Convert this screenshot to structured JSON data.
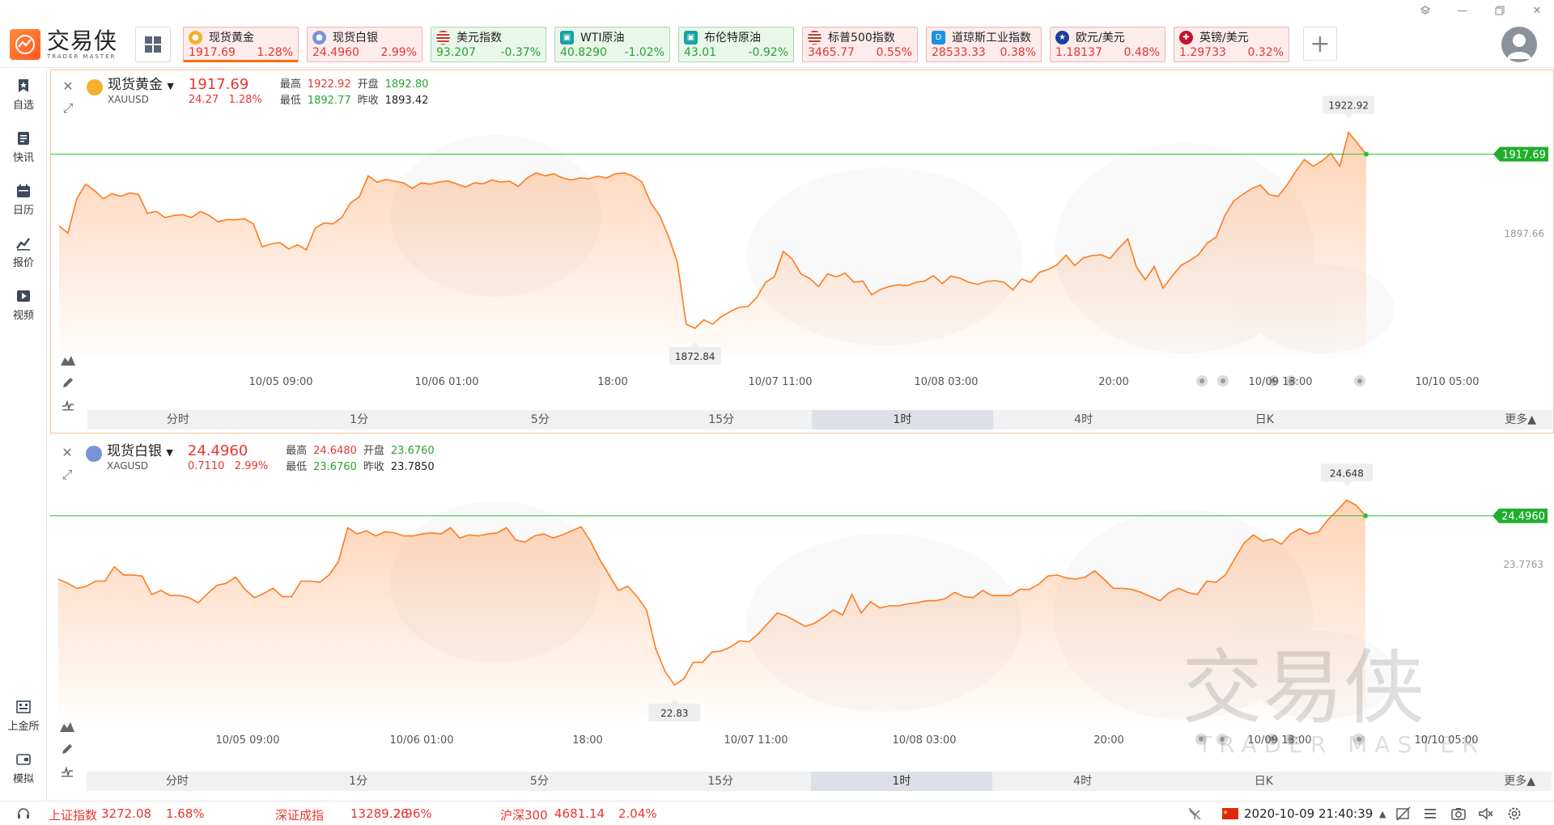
{
  "app": {
    "logo_cn": "交易侠",
    "logo_en": "TRADER MASTER"
  },
  "tickers": [
    {
      "name": "现货黄金",
      "price": "1917.69",
      "change": "1.28%",
      "dir": "up",
      "icon": "gold-coin-icon",
      "active": true
    },
    {
      "name": "现货白银",
      "price": "24.4960",
      "change": "2.99%",
      "dir": "up",
      "icon": "silver-coin-icon"
    },
    {
      "name": "美元指数",
      "price": "93.207",
      "change": "-0.37%",
      "dir": "down",
      "icon": "us-flag-icon"
    },
    {
      "name": "WTI原油",
      "price": "40.8290",
      "change": "-1.02%",
      "dir": "down",
      "icon": "oil-icon"
    },
    {
      "name": "布伦特原油",
      "price": "43.01",
      "change": "-0.92%",
      "dir": "down",
      "icon": "oil-icon"
    },
    {
      "name": "标普500指数",
      "price": "3465.77",
      "change": "0.55%",
      "dir": "up",
      "icon": "us-flag-icon"
    },
    {
      "name": "道琼斯工业指数",
      "price": "28533.33",
      "change": "0.38%",
      "dir": "up",
      "icon": "dow-jones-icon"
    },
    {
      "name": "欧元/美元",
      "price": "1.18137",
      "change": "0.48%",
      "dir": "up",
      "icon": "eu-flag-icon"
    },
    {
      "name": "英镑/美元",
      "price": "1.29733",
      "change": "0.32%",
      "dir": "up",
      "icon": "uk-flag-icon"
    }
  ],
  "sidebar": {
    "top": [
      {
        "label": "自选",
        "icon": "bookmark-star-icon"
      },
      {
        "label": "快讯",
        "icon": "news-icon"
      },
      {
        "label": "日历",
        "icon": "calendar-icon"
      },
      {
        "label": "报价",
        "icon": "quote-chart-icon"
      },
      {
        "label": "视频",
        "icon": "video-play-icon"
      }
    ],
    "bottom": [
      {
        "label": "上金所",
        "icon": "exchange-icon"
      },
      {
        "label": "模拟",
        "icon": "simulate-icon"
      }
    ]
  },
  "timeframes": [
    "分时",
    "1分",
    "5分",
    "15分",
    "1时",
    "4时",
    "日K",
    "更多▲"
  ],
  "selected_timeframe": "1时",
  "panels": [
    {
      "name": "现货黄金",
      "code": "XAUUSD",
      "last": "1917.69",
      "chg_abs": "24.27",
      "chg_pct": "1.28%",
      "high_label": "最高",
      "high": "1922.92",
      "open_label": "开盘",
      "open": "1892.80",
      "low_label": "最低",
      "low": "1892.77",
      "prev_label": "昨收",
      "prev": "1893.42",
      "mid_axis_label": "1897.66",
      "top_axis_label": "1917.69",
      "max_label": "1922.92",
      "min_label": "1872.84",
      "x_labels": [
        "10/05 09:00",
        "10/06 01:00",
        "18:00",
        "10/07 11:00",
        "10/08 03:00",
        "20:00",
        "10/09 13:00",
        "10/10 05:00"
      ],
      "chart_data": {
        "type": "area",
        "y_range": [
          1869,
          1930
        ],
        "values": [
          1900.5,
          1898.8,
          1907,
          1910.5,
          1909,
          1907,
          1908.2,
          1907.6,
          1908.4,
          1908,
          1903.5,
          1904,
          1902.5,
          1903,
          1903.2,
          1902.5,
          1904,
          1903,
          1901.5,
          1902,
          1902,
          1902.2,
          1901,
          1895.5,
          1896.2,
          1896.5,
          1895,
          1896,
          1894.8,
          1900,
          1901.2,
          1901,
          1902.5,
          1906,
          1907.5,
          1912.5,
          1911,
          1911.6,
          1911.2,
          1910.8,
          1909.5,
          1910.8,
          1910.5,
          1911,
          1911.3,
          1910.6,
          1909.8,
          1910.8,
          1910.6,
          1911.5,
          1911,
          1911.2,
          1910,
          1912,
          1913.2,
          1912.5,
          1913,
          1912,
          1911.5,
          1912,
          1911.8,
          1912.4,
          1912,
          1913,
          1913.2,
          1912.4,
          1911,
          1906,
          1903,
          1898,
          1891.8,
          1877,
          1876,
          1878,
          1877,
          1878.8,
          1880,
          1881,
          1881.2,
          1883.4,
          1887,
          1888.4,
          1894.4,
          1892.6,
          1889,
          1887.9,
          1886,
          1889,
          1888.3,
          1889.2,
          1887,
          1887.3,
          1884,
          1885.3,
          1886,
          1886.4,
          1886.2,
          1887,
          1887.3,
          1888.6,
          1886.7,
          1888.5,
          1888,
          1887,
          1886.5,
          1887.2,
          1887.4,
          1887,
          1885.2,
          1887.8,
          1887,
          1889.4,
          1890.1,
          1891.2,
          1893.5,
          1891,
          1892.9,
          1893.4,
          1893.6,
          1892.7,
          1895.2,
          1897.4,
          1890.6,
          1887.6,
          1890.8,
          1885.6,
          1888.4,
          1891,
          1892.2,
          1893.6,
          1896.4,
          1897.8,
          1903,
          1906.5,
          1908,
          1909.4,
          1910.3,
          1908,
          1907.6,
          1910.2,
          1913.5,
          1916.4,
          1914.8,
          1916.1,
          1917.9,
          1914.8,
          1922.92,
          1920.3,
          1917.69
        ],
        "last": 1917.69,
        "high": 1922.92,
        "low": 1872.84
      }
    },
    {
      "name": "现货白银",
      "code": "XAGUSD",
      "last": "24.4960",
      "chg_abs": "0.7110",
      "chg_pct": "2.99%",
      "high_label": "最高",
      "high": "24.6480",
      "open_label": "开盘",
      "open": "23.6760",
      "low_label": "最低",
      "low": "23.6760",
      "prev_label": "昨收",
      "prev": "23.7850",
      "mid_axis_label": "23.7763",
      "top_axis_label": "24.4960",
      "max_label": "24.648",
      "min_label": "22.83",
      "x_labels": [
        "10/05 09:00",
        "10/06 01:00",
        "18:00",
        "10/07 11:00",
        "10/08 03:00",
        "20:00",
        "10/09 13:00",
        "10/10 05:00"
      ],
      "chart_data": {
        "type": "area",
        "y_range": [
          22.55,
          24.95
        ],
        "values": [
          23.88,
          23.84,
          23.79,
          23.81,
          23.86,
          23.86,
          24.0,
          23.92,
          23.92,
          23.91,
          23.73,
          23.77,
          23.72,
          23.72,
          23.7,
          23.65,
          23.74,
          23.82,
          23.84,
          23.9,
          23.78,
          23.7,
          23.74,
          23.79,
          23.71,
          23.71,
          23.86,
          23.86,
          23.85,
          23.92,
          24.05,
          24.38,
          24.32,
          24.35,
          24.3,
          24.34,
          24.33,
          24.3,
          24.3,
          24.32,
          24.33,
          24.32,
          24.38,
          24.28,
          24.31,
          24.3,
          24.32,
          24.33,
          24.38,
          24.26,
          24.24,
          24.3,
          24.32,
          24.28,
          24.31,
          24.35,
          24.39,
          24.25,
          24.07,
          23.92,
          23.77,
          23.81,
          23.71,
          23.58,
          23.2,
          22.98,
          22.85,
          22.91,
          23.07,
          23.07,
          23.17,
          23.18,
          23.22,
          23.28,
          23.27,
          23.35,
          23.45,
          23.55,
          23.52,
          23.47,
          23.42,
          23.45,
          23.51,
          23.58,
          23.53,
          23.73,
          23.55,
          23.66,
          23.6,
          23.62,
          23.62,
          23.64,
          23.65,
          23.67,
          23.67,
          23.69,
          23.75,
          23.71,
          23.7,
          23.77,
          23.72,
          23.72,
          23.72,
          23.78,
          23.78,
          23.83,
          23.91,
          23.92,
          23.89,
          23.88,
          23.9,
          23.96,
          23.88,
          23.79,
          23.79,
          23.78,
          23.75,
          23.71,
          23.67,
          23.75,
          23.79,
          23.75,
          23.73,
          23.86,
          23.85,
          23.92,
          24.08,
          24.23,
          24.31,
          24.25,
          24.27,
          24.22,
          24.32,
          24.37,
          24.32,
          24.34,
          24.46,
          24.55,
          24.648,
          24.6,
          24.496
        ],
        "last": 24.496,
        "high": 24.648,
        "low": 22.83
      }
    }
  ],
  "status": {
    "indices": [
      {
        "name": "上证指数",
        "value": "3272.08",
        "change": "1.68%"
      },
      {
        "name": "深证成指",
        "value": "13289.26",
        "change": "2.96%"
      },
      {
        "name": "沪深300",
        "value": "4681.14",
        "change": "2.04%"
      }
    ],
    "datetime": "2020-10-09 21:40:39"
  },
  "colors": {
    "up": "#e8352e",
    "down": "#26a331",
    "accent": "#ff6a00",
    "line": "#ff7a1f",
    "last_line": "#26c231"
  }
}
